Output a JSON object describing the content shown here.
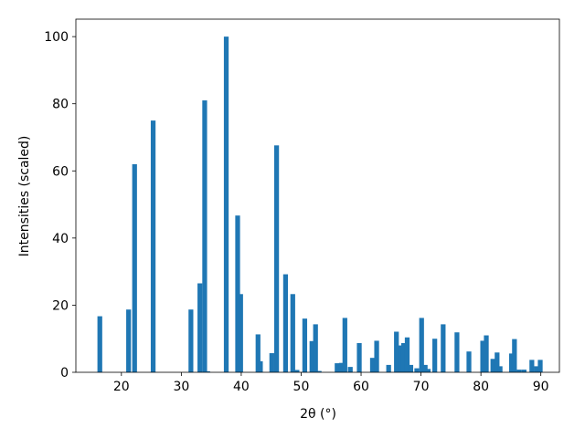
{
  "chart_data": {
    "type": "bar",
    "x_label": "2θ (°)",
    "y_label": "Intensities (scaled)",
    "x": [
      16.4,
      21.2,
      22.2,
      25.3,
      31.6,
      33.1,
      33.9,
      34.4,
      37.5,
      39.4,
      39.9,
      42.8,
      43.2,
      45.1,
      45.9,
      47.4,
      48.6,
      49.3,
      50.6,
      51.8,
      52.4,
      53.0,
      56.0,
      56.7,
      57.3,
      58.2,
      59.7,
      61.9,
      62.6,
      64.6,
      65.9,
      66.6,
      67.1,
      67.7,
      68.3,
      69.3,
      70.1,
      70.7,
      71.2,
      72.3,
      73.7,
      76.0,
      78.0,
      80.3,
      80.9,
      82.0,
      82.7,
      83.2,
      85.1,
      85.6,
      86.4,
      87.2,
      88.5,
      89.3,
      89.9
    ],
    "values": [
      16.7,
      18.7,
      62,
      75,
      18.7,
      26.5,
      81,
      0.3,
      100,
      46.7,
      23.3,
      11.3,
      3.3,
      5.7,
      67.6,
      29.2,
      23.3,
      0.7,
      16,
      9.3,
      14.3,
      0.4,
      2.7,
      2.8,
      16.2,
      1.6,
      8.7,
      4.3,
      9.4,
      2.2,
      12.1,
      8,
      8.7,
      10.4,
      2.2,
      1.2,
      16.2,
      2.2,
      1,
      10,
      14.3,
      11.9,
      6.2,
      9.4,
      11,
      4,
      5.9,
      1.8,
      5.6,
      9.9,
      0.8,
      0.8,
      3.7,
      1.8,
      3.7
    ],
    "bar_width": 0.8,
    "color": "#1f77b4",
    "xlim": [
      12.4,
      93.1
    ],
    "xticks": [
      20,
      30,
      40,
      50,
      60,
      70,
      80,
      90
    ],
    "ylim": [
      0,
      105.2
    ],
    "yticks": [
      0,
      20,
      40,
      60,
      80,
      100
    ]
  }
}
